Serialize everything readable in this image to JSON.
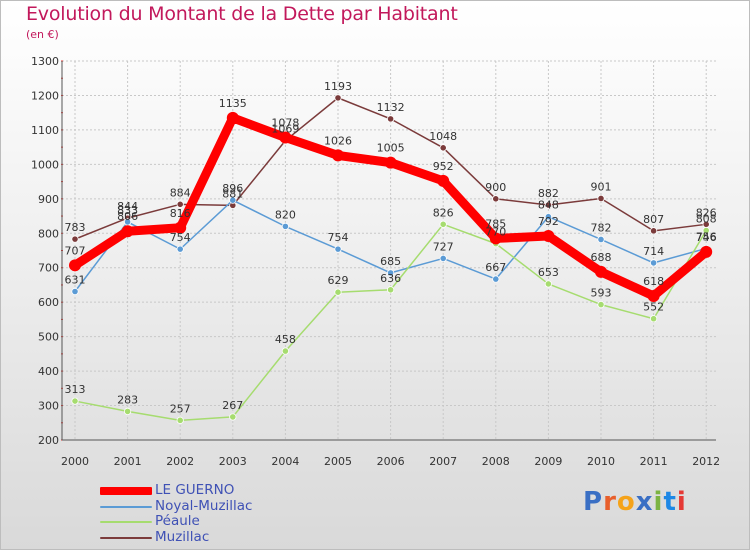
{
  "title": "Evolution du Montant de la Dette par Habitant",
  "subtitle": "(en €)",
  "brand": {
    "text": "Proxiti",
    "colors": [
      "#3a6fc4",
      "#e85f2b",
      "#f5a31a",
      "#3a6fc4",
      "#7cb342",
      "#1e88e5",
      "#e53935"
    ]
  },
  "chart_data": {
    "type": "line",
    "title": "Evolution du Montant de la Dette par Habitant",
    "subtitle": "(en €)",
    "x": [
      "2000",
      "2001",
      "2002",
      "2003",
      "2004",
      "2005",
      "2006",
      "2007",
      "2008",
      "2009",
      "2010",
      "2011",
      "2012"
    ],
    "ylim": [
      200,
      1300
    ],
    "yticks": [
      200,
      300,
      400,
      500,
      600,
      700,
      800,
      900,
      1000,
      1100,
      1200,
      1300
    ],
    "grid": true,
    "legend_position": "bottom-left",
    "series": [
      {
        "name": "LE GUERNO",
        "color": "#ff0000",
        "values": [
          707,
          806,
          816,
          1135,
          1078,
          1026,
          1005,
          952,
          785,
          792,
          688,
          618,
          746
        ],
        "labels": [
          "707",
          "806",
          "816",
          "1135",
          "1078",
          "1026",
          "1005",
          "952",
          "785",
          "792",
          "688",
          "618",
          "746"
        ]
      },
      {
        "name": "Noyal-Muzillac",
        "color": "#5b9bd5",
        "values": [
          631,
          833,
          754,
          896,
          820,
          754,
          685,
          727,
          667,
          848,
          782,
          714,
          756
        ],
        "labels": [
          "631",
          "833",
          "754",
          "896",
          "820",
          "754",
          "685",
          "727",
          "667",
          "848",
          "782",
          "714",
          "756"
        ]
      },
      {
        "name": "Péaule",
        "color": "#a6dc6f",
        "values": [
          313,
          283,
          257,
          267,
          458,
          629,
          636,
          826,
          770,
          653,
          593,
          552,
          808
        ],
        "labels": [
          "313",
          "283",
          "257",
          "267",
          "458",
          "629",
          "636",
          "826",
          "770",
          "653",
          "593",
          "552",
          "808"
        ]
      },
      {
        "name": "Muzillac",
        "color": "#7b3b3b",
        "values": [
          783,
          844,
          884,
          881,
          1069,
          1193,
          1132,
          1048,
          900,
          882,
          901,
          807,
          826
        ],
        "labels": [
          "783",
          "844",
          "884",
          "881",
          "1069",
          "1193",
          "1132",
          "1048",
          "900",
          "882",
          "901",
          "807",
          "826"
        ]
      }
    ]
  }
}
